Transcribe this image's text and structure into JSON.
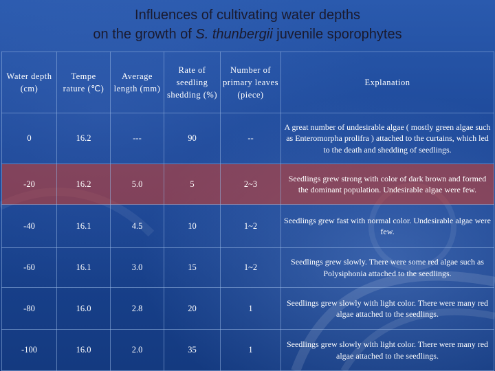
{
  "title": {
    "line1": "Influences of cultivating water depths",
    "line2_prefix": "on the growth of ",
    "line2_species": "S. thunbergii",
    "line2_suffix": " juvenile sporophytes"
  },
  "table": {
    "headers": [
      "Water depth (cm)",
      "Tempe rature (℃)",
      "Average length (mm)",
      "Rate of seedling shedding (%)",
      "Number of primary leaves (piece)",
      "Explanation"
    ],
    "rows": [
      [
        "0",
        "16.2",
        "---",
        "90",
        "--",
        "A great number of undesirable algae ( mostly green algae such as Enteromorpha prolifra ) attached to the curtains, which led to the death and shedding of seedlings."
      ],
      [
        "-20",
        "16.2",
        "5.0",
        "5",
        "2~3",
        "Seedlings grew strong with color of dark brown and formed the dominant population. Undesirable algae were few."
      ],
      [
        "-40",
        "16.1",
        "4.5",
        "10",
        "1~2",
        "Seedlings grew fast with normal color. Undesirable algae were few."
      ],
      [
        "-60",
        "16.1",
        "3.0",
        "15",
        "1~2",
        "Seedlings grew slowly. There were some red algae such as Polysiphonia attached to the seedlings."
      ],
      [
        "-80",
        "16.0",
        "2.8",
        "20",
        "1",
        "Seedlings grew slowly with light color. There were many red algae attached to the seedlings."
      ],
      [
        "-100",
        "16.0",
        "2.0",
        "35",
        "1",
        "Seedlings grew slowly with light color. There were many red algae attached to the seedlings."
      ]
    ],
    "highlight_row_color": "#d23c28"
  }
}
